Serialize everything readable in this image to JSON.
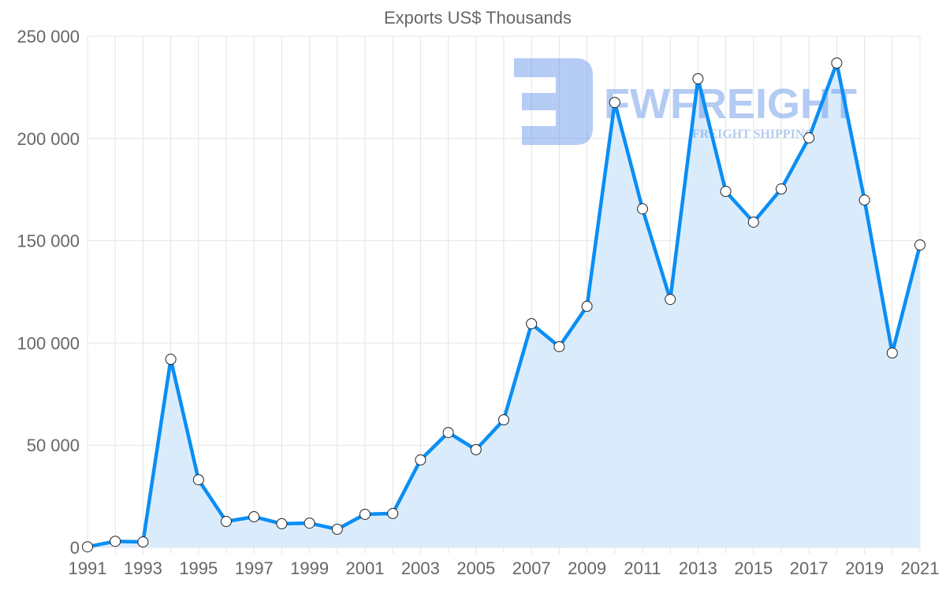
{
  "chart_data": {
    "type": "line",
    "title": "Exports US$ Thousands",
    "xlabel": "",
    "ylabel": "",
    "x": [
      1991,
      1992,
      1993,
      1994,
      1995,
      1996,
      1997,
      1998,
      1999,
      2000,
      2001,
      2002,
      2003,
      2004,
      2005,
      2006,
      2007,
      2008,
      2009,
      2010,
      2011,
      2012,
      2013,
      2014,
      2015,
      2016,
      2017,
      2018,
      2019,
      2020,
      2021
    ],
    "values": [
      300,
      3000,
      2700,
      92000,
      33100,
      12700,
      15000,
      11600,
      11900,
      8900,
      16200,
      16600,
      42800,
      56200,
      47800,
      62400,
      109400,
      98200,
      117900,
      217600,
      165600,
      121300,
      229200,
      174100,
      159100,
      175300,
      200300,
      236900,
      169900,
      95100,
      147900
    ],
    "ylim": [
      0,
      250000
    ],
    "yticks": [
      0,
      50000,
      100000,
      150000,
      200000,
      250000
    ],
    "ytick_labels": [
      "0",
      "50 000",
      "100 000",
      "150 000",
      "200 000",
      "250 000"
    ],
    "xtick_labels": [
      "1991",
      "1993",
      "1995",
      "1997",
      "1999",
      "2001",
      "2003",
      "2005",
      "2007",
      "2009",
      "2011",
      "2013",
      "2015",
      "2017",
      "2019",
      "2021"
    ],
    "fill": true,
    "grid": true,
    "line_color": "#0a8ef5",
    "fill_color": "#d8ebfc"
  },
  "watermark": {
    "brand": "FWFREIGHT",
    "tagline": "FREIGHT SHIPPING"
  }
}
